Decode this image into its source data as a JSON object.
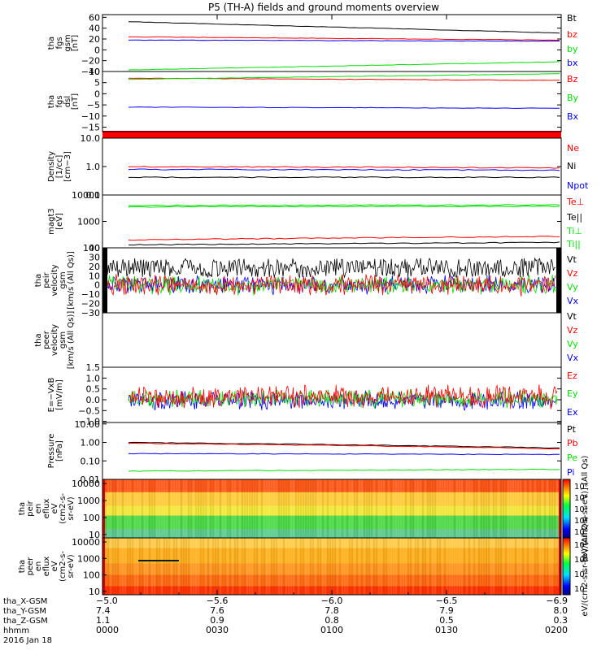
{
  "title": "P5 (TH-A) fields and ground moments overview",
  "colors": {
    "black": "#000000",
    "red": "#ff0000",
    "green": "#00e000",
    "blue": "#0000ff"
  },
  "chart_data": [
    {
      "type": "line",
      "panel": "fgs-gsm",
      "ylabel": [
        "tha",
        "fgs",
        "gsm",
        "[nT]"
      ],
      "ylim": [
        -40,
        65
      ],
      "yticks": [
        "60",
        "40",
        "20",
        "0",
        "−20",
        "−40"
      ],
      "ytick_values": [
        60,
        40,
        20,
        0,
        -20,
        -40
      ],
      "series": [
        {
          "name": "Bt",
          "color": "black",
          "start": 52,
          "end": 31
        },
        {
          "name": "bz",
          "color": "red",
          "start": 24,
          "end": 18
        },
        {
          "name": "by",
          "color": "green",
          "start": -37,
          "end": -22
        },
        {
          "name": "bx",
          "color": "blue",
          "start": 18,
          "end": 16
        }
      ]
    },
    {
      "type": "line",
      "panel": "fgs-dsl",
      "ylabel": [
        "tha",
        "fgs",
        "dsl",
        "[nT]"
      ],
      "ylim": [
        -17,
        10
      ],
      "yticks": [
        "10",
        "5",
        "0",
        "−5",
        "−10",
        "−15"
      ],
      "ytick_values": [
        10,
        5,
        0,
        -5,
        -10,
        -15
      ],
      "series": [
        {
          "name": "Bz",
          "color": "red",
          "start": 7,
          "end": 6
        },
        {
          "name": "By",
          "color": "green",
          "start": 6.5,
          "end": 9
        },
        {
          "name": "Bx",
          "color": "blue",
          "start": -6,
          "end": -6.5
        }
      ]
    },
    {
      "type": "line",
      "panel": "density",
      "scale": "log",
      "ylabel": [
        "Density",
        "[1/cc]",
        "[cm−3]"
      ],
      "ylim": [
        0.1,
        10
      ],
      "yticks": [
        "10.0",
        "1.0",
        "0.1"
      ],
      "ytick_values": [
        10,
        1,
        0.1
      ],
      "series": [
        {
          "name": "Ne",
          "color": "red",
          "start": 1.0,
          "end": 0.9
        },
        {
          "name": "Ni",
          "color": "black",
          "start": 0.42,
          "end": 0.42
        },
        {
          "name": "Npot",
          "color": "blue",
          "start": 0.8,
          "end": 0.75
        }
      ]
    },
    {
      "type": "line",
      "panel": "temperature",
      "scale": "log",
      "ylabel": [
        "magt3",
        "[eV]"
      ],
      "ylim": [
        100,
        10000
      ],
      "yticks": [
        "10000",
        "1000",
        "100"
      ],
      "ytick_values": [
        10000,
        1000,
        100
      ],
      "series": [
        {
          "name": "Te⊥",
          "color": "red",
          "start": 200,
          "end": 270
        },
        {
          "name": "Te||",
          "color": "black",
          "start": 130,
          "end": 160
        },
        {
          "name": "Ti⊥",
          "color": "green",
          "start": 3600,
          "end": 3700
        },
        {
          "name": "Ti||",
          "color": "green",
          "start": 4000,
          "end": 4200
        }
      ]
    },
    {
      "type": "line",
      "panel": "peir-velocity",
      "ylabel": [
        "tha",
        "peir",
        "velocity",
        "gsm",
        "[km/s (All Qs)]"
      ],
      "ylim": [
        -30,
        40
      ],
      "yticks": [
        "40",
        "30",
        "20",
        "10",
        "0",
        "−10",
        "−20",
        "−30"
      ],
      "ytick_values": [
        40,
        30,
        20,
        10,
        0,
        -10,
        -20,
        -30
      ],
      "series": [
        {
          "name": "Vt",
          "color": "black",
          "start": 8,
          "end": 8
        },
        {
          "name": "Vz",
          "color": "red",
          "start": 0,
          "end": 0
        },
        {
          "name": "Vy",
          "color": "green",
          "start": 0,
          "end": 0
        },
        {
          "name": "Vx",
          "color": "blue",
          "start": 0,
          "end": 0
        }
      ]
    },
    {
      "type": "line",
      "panel": "peer-velocity",
      "ylabel": [
        "tha",
        "peer",
        "velocity",
        "gsm",
        "[km/s (All Qs)]"
      ],
      "series": [
        {
          "name": "Vt",
          "color": "black"
        },
        {
          "name": "Vz",
          "color": "red"
        },
        {
          "name": "Vy",
          "color": "green"
        },
        {
          "name": "Vx",
          "color": "blue"
        }
      ]
    },
    {
      "type": "line",
      "panel": "efield",
      "ylabel": [
        "E=−VxB",
        "[mV/m]"
      ],
      "ylim": [
        -1.05,
        1.5
      ],
      "yticks": [
        "1.5",
        "1.0",
        "0.5",
        "0.0",
        "−0.5",
        "−1.0"
      ],
      "ytick_values": [
        1.5,
        1.0,
        0.5,
        0.0,
        -0.5,
        -1.0
      ],
      "series": [
        {
          "name": "Ez",
          "color": "red",
          "start": 0.15,
          "end": 0.1
        },
        {
          "name": "Ey",
          "color": "green",
          "start": 0.05,
          "end": 0.05
        },
        {
          "name": "Ex",
          "color": "blue",
          "start": -0.05,
          "end": -0.05
        }
      ]
    },
    {
      "type": "line",
      "panel": "pressure",
      "scale": "log",
      "ylabel": [
        "Pressure",
        "[nPa]"
      ],
      "ylim": [
        0.01,
        12
      ],
      "yticks": [
        "10.00",
        "1.00",
        "0.10",
        "0.01"
      ],
      "ytick_values": [
        10,
        1,
        0.1,
        0.01
      ],
      "series": [
        {
          "name": "Pt",
          "color": "black",
          "start": 1.0,
          "end": 0.5
        },
        {
          "name": "Pb",
          "color": "red",
          "start": 0.9,
          "end": 0.45
        },
        {
          "name": "Pe",
          "color": "green",
          "start": 0.028,
          "end": 0.035
        },
        {
          "name": "Pi",
          "color": "blue",
          "start": 0.25,
          "end": 0.22
        }
      ]
    },
    {
      "type": "heatmap",
      "panel": "peir-spectrogram",
      "ylabel": [
        "tha",
        "peir",
        "en",
        "eflux",
        "eV",
        "(cm2-s-",
        "sr-eV)"
      ],
      "yticks": [
        "10000",
        "1000",
        "100",
        "10"
      ],
      "ytick_values": [
        10000,
        1000,
        100,
        10
      ],
      "colorbar": {
        "label": "[eV/(cm2-s-sr-eV)] (All Qs)",
        "ticks": [
          "10⁸",
          "10⁶",
          "10⁴",
          "10²",
          "10⁰"
        ]
      }
    },
    {
      "type": "heatmap",
      "panel": "peer-spectrogram",
      "ylabel": [
        "tha",
        "peer",
        "en",
        "eflux",
        "eV",
        "(cm2-s-",
        "sr-eV)"
      ],
      "yticks": [
        "10000",
        "1000",
        "100",
        "10"
      ],
      "ytick_values": [
        10000,
        1000,
        100,
        10
      ],
      "colorbar": {
        "label": "eV/(cm2-s-sr-eV) (All Qs)",
        "ticks": [
          "10⁸",
          "10⁶",
          "10⁴",
          "10²"
        ]
      }
    }
  ],
  "xaxis": {
    "labels": [
      "tha_X-GSM",
      "tha_Y-GSM",
      "tha_Z-GSM",
      "hhmm",
      "2016 Jan 18"
    ],
    "ticks": [
      {
        "time": 0,
        "x_gsm": "−5.0",
        "y_gsm": "7.4",
        "z_gsm": "1.1",
        "hhmm": "0000"
      },
      {
        "time": 30,
        "x_gsm": "−5.6",
        "y_gsm": "7.6",
        "z_gsm": "0.9",
        "hhmm": "0030"
      },
      {
        "time": 60,
        "x_gsm": "−6.0",
        "y_gsm": "7.8",
        "z_gsm": "0.8",
        "hhmm": "0100"
      },
      {
        "time": 90,
        "x_gsm": "−6.5",
        "y_gsm": "7.9",
        "z_gsm": "0.5",
        "hhmm": "0130"
      },
      {
        "time": 120,
        "x_gsm": "−6.9",
        "y_gsm": "8.0",
        "z_gsm": "0.3",
        "hhmm": "0200"
      }
    ]
  }
}
